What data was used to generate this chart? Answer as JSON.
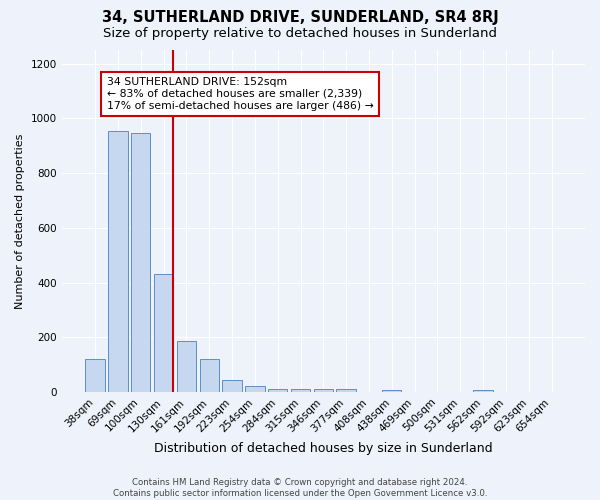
{
  "title": "34, SUTHERLAND DRIVE, SUNDERLAND, SR4 8RJ",
  "subtitle": "Size of property relative to detached houses in Sunderland",
  "xlabel": "Distribution of detached houses by size in Sunderland",
  "ylabel": "Number of detached properties",
  "footer_line1": "Contains HM Land Registry data © Crown copyright and database right 2024.",
  "footer_line2": "Contains public sector information licensed under the Open Government Licence v3.0.",
  "categories": [
    "38sqm",
    "69sqm",
    "100sqm",
    "130sqm",
    "161sqm",
    "192sqm",
    "223sqm",
    "254sqm",
    "284sqm",
    "315sqm",
    "346sqm",
    "377sqm",
    "408sqm",
    "438sqm",
    "469sqm",
    "500sqm",
    "531sqm",
    "562sqm",
    "592sqm",
    "623sqm",
    "654sqm"
  ],
  "values": [
    120,
    955,
    948,
    430,
    185,
    120,
    42,
    20,
    10,
    12,
    12,
    10,
    0,
    8,
    0,
    0,
    0,
    8,
    0,
    0,
    0
  ],
  "bar_color": "#c5d8f0",
  "bar_edge_color": "#5b8fc9",
  "property_label": "34 SUTHERLAND DRIVE: 152sqm",
  "annotation_line1": "← 83% of detached houses are smaller (2,339)",
  "annotation_line2": "17% of semi-detached houses are larger (486) →",
  "annotation_box_color": "#ffffff",
  "annotation_box_edge_color": "#cc0000",
  "red_line_color": "#cc0000",
  "ylim": [
    0,
    1250
  ],
  "yticks": [
    0,
    200,
    400,
    600,
    800,
    1000,
    1200
  ],
  "background_color": "#eef2fb",
  "grid_color": "#ffffff",
  "title_fontsize": 10.5,
  "subtitle_fontsize": 9.5,
  "ylabel_fontsize": 8,
  "xlabel_fontsize": 9,
  "tick_fontsize": 7.5,
  "footer_fontsize": 6.2
}
